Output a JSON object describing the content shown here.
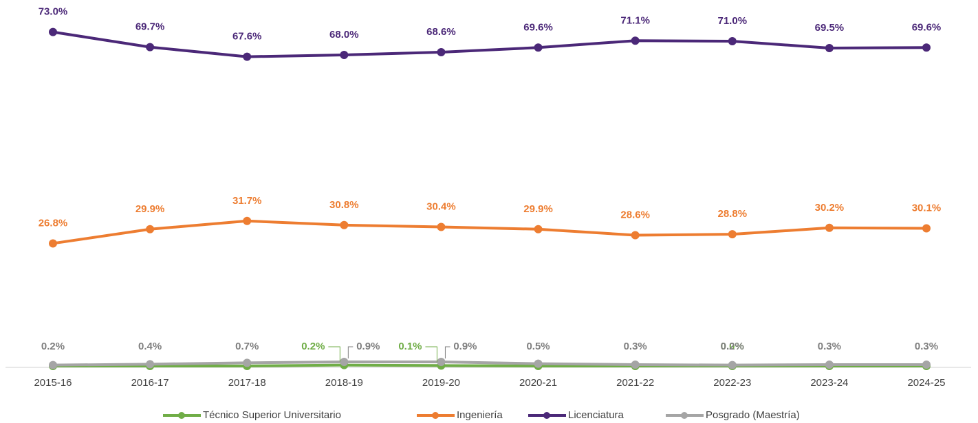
{
  "chart_data": {
    "type": "line",
    "categories": [
      "2015-16",
      "2016-17",
      "2017-18",
      "2018-19",
      "2019-20",
      "2020-21",
      "2021-22",
      "2022-23",
      "2023-24",
      "2024-25"
    ],
    "ylim": [
      0,
      80
    ],
    "series": [
      {
        "name": "Técnico Superior Universitario",
        "color": "#70ad47",
        "values": [
          0,
          0,
          0,
          0.2,
          0.1,
          0,
          0,
          0,
          0,
          0
        ],
        "value_labels": [
          null,
          null,
          null,
          "0.2%",
          "0.1%",
          null,
          null,
          "0.0%",
          null,
          null
        ]
      },
      {
        "name": "Ingeniería",
        "color": "#ed7d31",
        "values": [
          26.8,
          29.9,
          31.7,
          30.8,
          30.4,
          29.9,
          28.6,
          28.8,
          30.2,
          30.1
        ],
        "value_labels": [
          "26.8%",
          "29.9%",
          "31.7%",
          "30.8%",
          "30.4%",
          "29.9%",
          "28.6%",
          "28.8%",
          "30.2%",
          "30.1%"
        ]
      },
      {
        "name": "Licenciatura",
        "color": "#4b2878",
        "values": [
          73.0,
          69.7,
          67.6,
          68.0,
          68.6,
          69.6,
          71.1,
          71.0,
          69.5,
          69.6
        ],
        "value_labels": [
          "73.0%",
          "69.7%",
          "67.6%",
          "68.0%",
          "68.6%",
          "69.6%",
          "71.1%",
          "71.0%",
          "69.5%",
          "69.6%"
        ]
      },
      {
        "name": "Posgrado (Maestría)",
        "color": "#a5a5a5",
        "values": [
          0.2,
          0.4,
          0.7,
          0.9,
          0.9,
          0.5,
          0.3,
          0.2,
          0.3,
          0.3
        ],
        "value_labels": [
          "0.2%",
          "0.4%",
          "0.7%",
          "0.9%",
          "0.9%",
          "0.5%",
          "0.3%",
          "0.2%",
          "0.3%",
          "0.3%"
        ]
      }
    ]
  }
}
